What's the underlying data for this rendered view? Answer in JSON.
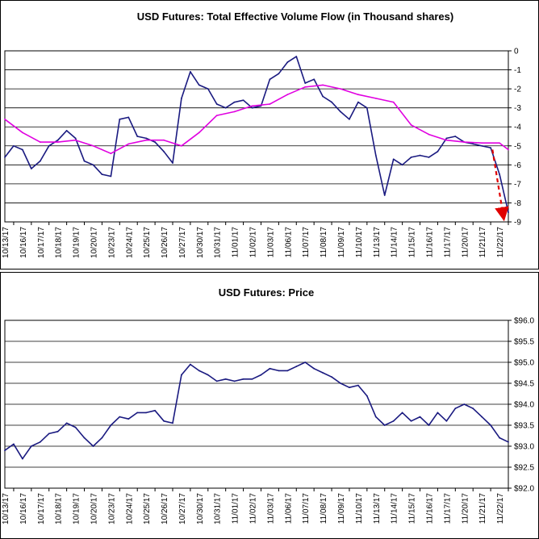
{
  "chart_data": [
    {
      "type": "line",
      "title": "USD Futures: Total Effective Volume Flow (in Thousand shares)",
      "xlabel": "",
      "ylabel": "",
      "ylim": [
        -9,
        0
      ],
      "y_ticks": [
        "0",
        "-1",
        "-2",
        "-3",
        "-4",
        "-5",
        "-6",
        "-7",
        "-8",
        "-9"
      ],
      "grid": true,
      "categories": [
        "10/13/17",
        "10/16/17",
        "10/17/17",
        "10/18/17",
        "10/19/17",
        "10/20/17",
        "10/23/17",
        "10/24/17",
        "10/25/17",
        "10/26/17",
        "10/27/17",
        "10/30/17",
        "10/31/17",
        "11/01/17",
        "11/02/17",
        "11/03/17",
        "11/06/17",
        "11/07/17",
        "11/08/17",
        "11/09/17",
        "11/10/17",
        "11/13/17",
        "11/14/17",
        "11/15/17",
        "11/16/17",
        "11/17/17",
        "11/20/17",
        "11/21/17",
        "11/22/17"
      ],
      "series": [
        {
          "color": "#1a1a80",
          "x": [
            0,
            0.5,
            1,
            1.5,
            2,
            2.5,
            3,
            3.5,
            4,
            4.5,
            5,
            5.5,
            6,
            6.5,
            7,
            7.5,
            8,
            8.5,
            9,
            9.5,
            10,
            10.5,
            11,
            11.5,
            12,
            12.5,
            13,
            13.5,
            14,
            14.5,
            15,
            15.5,
            16,
            16.5,
            17,
            17.5,
            18,
            18.5,
            19,
            19.5,
            20,
            20.5,
            21,
            21.5,
            22,
            22.5,
            23,
            23.5,
            24,
            24.5,
            25,
            25.5,
            26,
            26.5,
            27,
            27.5,
            28,
            28.5
          ],
          "values": [
            -5.6,
            -5.0,
            -5.2,
            -6.2,
            -5.8,
            -5.0,
            -4.7,
            -4.2,
            -4.6,
            -5.8,
            -6.0,
            -6.5,
            -6.6,
            -3.6,
            -3.5,
            -4.5,
            -4.6,
            -4.8,
            -5.3,
            -5.9,
            -2.5,
            -1.1,
            -1.8,
            -2.0,
            -2.8,
            -3.0,
            -2.7,
            -2.6,
            -3.0,
            -2.9,
            -1.5,
            -1.2,
            -0.6,
            -0.3,
            -1.7,
            -1.5,
            -2.4,
            -2.7,
            -3.2,
            -3.6,
            -2.7,
            -3.0,
            -5.5,
            -7.6,
            -5.7,
            -6.0,
            -5.6,
            -5.5,
            -5.6,
            -5.3,
            -4.6,
            -4.5,
            -4.8,
            -4.9,
            -5.0,
            -5.1,
            -6.5,
            -8.5
          ]
        },
        {
          "color": "#e000e0",
          "x": [
            0,
            1,
            2,
            3,
            4,
            5,
            6,
            7,
            8,
            9,
            10,
            11,
            12,
            13,
            14,
            15,
            16,
            17,
            18,
            19,
            20,
            21,
            22,
            23,
            24,
            25,
            26,
            27,
            28,
            28.5
          ],
          "values": [
            -3.6,
            -4.3,
            -4.8,
            -4.8,
            -4.7,
            -5.0,
            -5.4,
            -4.9,
            -4.7,
            -4.7,
            -5.0,
            -4.3,
            -3.4,
            -3.2,
            -2.9,
            -2.8,
            -2.3,
            -1.9,
            -1.8,
            -2.0,
            -2.3,
            -2.5,
            -2.7,
            -3.9,
            -4.4,
            -4.7,
            -4.8,
            -4.85,
            -4.85,
            -5.2
          ]
        }
      ],
      "annotation": {
        "type": "arrow",
        "color": "#e00000",
        "from": [
          27.6,
          -5.2
        ],
        "to": [
          28.2,
          -8.6
        ]
      }
    },
    {
      "type": "line",
      "title": "USD Futures: Price",
      "xlabel": "",
      "ylabel": "",
      "ylim": [
        92,
        96
      ],
      "y_ticks": [
        "$96.0",
        "$95.5",
        "$95.0",
        "$94.5",
        "$94.0",
        "$93.5",
        "$93.0",
        "$92.5",
        "$92.0"
      ],
      "grid": true,
      "categories": [
        "10/13/17",
        "10/16/17",
        "10/17/17",
        "10/18/17",
        "10/19/17",
        "10/20/17",
        "10/23/17",
        "10/24/17",
        "10/25/17",
        "10/26/17",
        "10/27/17",
        "10/30/17",
        "10/31/17",
        "11/01/17",
        "11/02/17",
        "11/03/17",
        "11/06/17",
        "11/07/17",
        "11/08/17",
        "11/09/17",
        "11/10/17",
        "11/13/17",
        "11/14/17",
        "11/15/17",
        "11/16/17",
        "11/17/17",
        "11/20/17",
        "11/21/17",
        "11/22/17"
      ],
      "series": [
        {
          "color": "#1a1a80",
          "x": [
            0,
            0.5,
            1,
            1.5,
            2,
            2.5,
            3,
            3.5,
            4,
            4.5,
            5,
            5.5,
            6,
            6.5,
            7,
            7.5,
            8,
            8.5,
            9,
            9.5,
            10,
            10.5,
            11,
            11.5,
            12,
            12.5,
            13,
            13.5,
            14,
            14.5,
            15,
            15.5,
            16,
            16.5,
            17,
            17.5,
            18,
            18.5,
            19,
            19.5,
            20,
            20.5,
            21,
            21.5,
            22,
            22.5,
            23,
            23.5,
            24,
            24.5,
            25,
            25.5,
            26,
            26.5,
            27,
            27.5,
            28,
            28.5
          ],
          "values": [
            92.9,
            93.05,
            92.7,
            93.0,
            93.1,
            93.3,
            93.35,
            93.55,
            93.45,
            93.2,
            93.0,
            93.2,
            93.5,
            93.7,
            93.65,
            93.8,
            93.8,
            93.85,
            93.6,
            93.55,
            94.7,
            94.95,
            94.8,
            94.7,
            94.55,
            94.6,
            94.55,
            94.6,
            94.6,
            94.7,
            94.85,
            94.8,
            94.8,
            94.9,
            95.0,
            94.85,
            94.75,
            94.65,
            94.5,
            94.4,
            94.45,
            94.2,
            93.7,
            93.5,
            93.6,
            93.8,
            93.6,
            93.7,
            93.5,
            93.8,
            93.6,
            93.9,
            94.0,
            93.9,
            93.7,
            93.5,
            93.2,
            93.1
          ]
        }
      ]
    }
  ]
}
